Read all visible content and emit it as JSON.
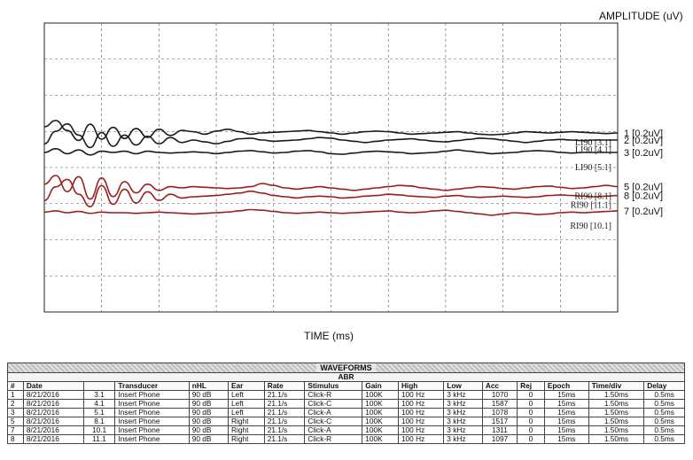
{
  "chart_data": {
    "type": "line",
    "y_axis_label": "AMPLITUDE (uV)",
    "x_axis_label": "TIME (ms)",
    "grid": true,
    "grid_style": "dashed",
    "series": [
      {
        "id": "1",
        "label": "1 [0.2uV]",
        "marker": "LI90 [3.1]",
        "color": "#1a1a1a",
        "baseline": 0.0,
        "y": [
          0.5,
          1.0,
          0.2,
          -0.6,
          0.7,
          -0.5,
          0.45,
          -0.45,
          0.35,
          -0.35,
          0.3,
          -0.2,
          0.2,
          0.1,
          -0.1,
          0.15,
          0.3,
          0.1,
          -0.1,
          0.0,
          0.05,
          0.1,
          0.15,
          0.2,
          0.1,
          0.0,
          -0.1,
          0.0,
          0.1,
          0.15,
          0.1,
          0.0,
          -0.1,
          -0.05,
          0.0,
          0.05,
          0.1,
          0.0,
          -0.1,
          -0.15,
          -0.1,
          0.0,
          0.1,
          0.05,
          0.0,
          0.05,
          0.1,
          0.05,
          0.0,
          -0.05,
          0.0
        ]
      },
      {
        "id": "2",
        "label": "2 [0.2uV]",
        "marker": "LI90 [4.1]",
        "color": "#1a1a1a",
        "baseline": -0.2,
        "y": [
          -0.3,
          0.7,
          1.3,
          0.4,
          -0.6,
          0.6,
          -0.5,
          0.4,
          -0.4,
          0.3,
          -0.3,
          0.2,
          -0.2,
          0.0,
          -0.15,
          -0.3,
          -0.1,
          0.1,
          0.15,
          0.0,
          -0.1,
          -0.05,
          0.0,
          0.1,
          0.2,
          0.15,
          0.0,
          -0.1,
          -0.2,
          -0.1,
          0.0,
          0.05,
          0.1,
          0.0,
          -0.1,
          -0.15,
          -0.05,
          0.05,
          0.15,
          0.1,
          0.0,
          -0.1,
          -0.2,
          -0.1,
          0.0,
          0.05,
          0.0,
          -0.05,
          0.0,
          0.0,
          0.0
        ]
      },
      {
        "id": "3",
        "label": "3 [0.2uV]",
        "marker": "LI90 [5.1]",
        "color": "#1a1a1a",
        "baseline": -0.55,
        "y": [
          0.0,
          0.3,
          -0.1,
          0.2,
          -0.2,
          0.1,
          0.0,
          0.1,
          -0.1,
          0.1,
          0.0,
          -0.05,
          0.0,
          0.05,
          0.0,
          -0.1,
          0.0,
          0.1,
          0.15,
          0.05,
          -0.05,
          0.0,
          0.1,
          0.15,
          0.05,
          -0.1,
          -0.15,
          -0.05,
          0.05,
          0.1,
          0.05,
          0.0,
          -0.1,
          -0.05,
          0.0,
          0.1,
          0.2,
          0.1,
          0.0,
          -0.1,
          -0.05,
          0.0,
          0.1,
          0.15,
          0.1,
          0.0,
          -0.05,
          0.0,
          0.0,
          0.0,
          0.0
        ]
      },
      {
        "id": "5",
        "label": "5 [0.2uV]",
        "marker": "RI90 [8.1]",
        "color": "#9a1f1f",
        "baseline": -1.55,
        "y": [
          0.3,
          1.0,
          -0.3,
          0.9,
          -0.9,
          0.8,
          -0.7,
          0.5,
          -0.4,
          0.3,
          -0.2,
          0.1,
          0.0,
          0.1,
          0.05,
          0.0,
          -0.05,
          0.0,
          0.1,
          0.35,
          0.2,
          0.0,
          -0.1,
          0.0,
          0.1,
          0.0,
          -0.1,
          -0.2,
          -0.1,
          0.0,
          0.1,
          0.2,
          0.15,
          0.0,
          -0.1,
          -0.2,
          -0.1,
          0.0,
          0.1,
          0.05,
          -0.05,
          -0.1,
          0.0,
          0.1,
          0.15,
          0.05,
          -0.05,
          0.0,
          0.1,
          0.2,
          0.1
        ]
      },
      {
        "id": "8",
        "label": "8 [0.2uV]",
        "marker": "RI90 [11.1]",
        "color": "#9a1f1f",
        "baseline": -1.8,
        "y": [
          -0.3,
          0.8,
          1.4,
          0.2,
          -0.8,
          0.9,
          -0.6,
          0.6,
          -0.5,
          0.4,
          -0.3,
          0.2,
          -0.1,
          0.0,
          0.05,
          0.1,
          0.2,
          0.3,
          0.45,
          0.3,
          0.1,
          0.0,
          -0.1,
          0.0,
          0.05,
          0.0,
          -0.1,
          -0.05,
          0.05,
          0.1,
          0.2,
          0.15,
          0.05,
          0.0,
          -0.05,
          0.05,
          0.1,
          0.0,
          -0.05,
          0.0,
          0.05,
          0.0,
          -0.05,
          0.0,
          0.1,
          0.15,
          0.1,
          0.05,
          0.0,
          0.05,
          0.1
        ]
      },
      {
        "id": "7",
        "label": "7 [0.2uV]",
        "marker": "RI90 [10.1]",
        "color": "#9a1f1f",
        "baseline": -2.25,
        "y": [
          0.05,
          0.15,
          0.0,
          0.1,
          -0.05,
          0.05,
          0.0,
          0.0,
          -0.05,
          0.0,
          0.05,
          0.0,
          -0.05,
          -0.1,
          -0.05,
          0.0,
          0.05,
          0.15,
          0.25,
          0.2,
          0.1,
          0.0,
          -0.05,
          0.0,
          0.05,
          0.0,
          -0.05,
          0.0,
          0.05,
          0.1,
          0.15,
          0.05,
          0.0,
          0.05,
          0.15,
          0.2,
          0.1,
          0.0,
          -0.1,
          -0.2,
          -0.1,
          0.0,
          -0.05,
          -0.15,
          -0.1,
          0.0,
          0.05,
          0.0,
          0.05,
          0.1,
          0.15
        ]
      }
    ]
  },
  "table": {
    "title": "WAVEFORMS",
    "subtitle": "ABR",
    "columns": [
      "#",
      "Date",
      "",
      "Transducer",
      "nHL",
      "Ear",
      "Rate",
      "Stimulus",
      "Gain",
      "High",
      "Low",
      "Acc",
      "Rej",
      "Epoch",
      "Time/div",
      "Delay"
    ],
    "rows": [
      [
        "1",
        "8/21/2016",
        "3.1",
        "Insert Phone",
        "90 dB",
        "Left",
        "21.1/s",
        "Click-R",
        "100K",
        "100 Hz",
        "3 kHz",
        "1070",
        "0",
        "15ms",
        "1.50ms",
        "0.5ms"
      ],
      [
        "2",
        "8/21/2016",
        "4.1",
        "Insert Phone",
        "90 dB",
        "Left",
        "21.1/s",
        "Click-C",
        "100K",
        "100 Hz",
        "3 kHz",
        "1587",
        "0",
        "15ms",
        "1.50ms",
        "0.5ms"
      ],
      [
        "3",
        "8/21/2016",
        "5.1",
        "Insert Phone",
        "90 dB",
        "Left",
        "21.1/s",
        "Click-A",
        "100K",
        "100 Hz",
        "3 kHz",
        "1078",
        "0",
        "15ms",
        "1.50ms",
        "0.5ms"
      ],
      [
        "5",
        "8/21/2016",
        "8.1",
        "Insert Phone",
        "90 dB",
        "Right",
        "21.1/s",
        "Click-C",
        "100K",
        "100 Hz",
        "3 kHz",
        "1517",
        "0",
        "15ms",
        "1.50ms",
        "0.5ms"
      ],
      [
        "7",
        "8/21/2016",
        "10.1",
        "Insert Phone",
        "90 dB",
        "Right",
        "21.1/s",
        "Click-A",
        "100K",
        "100 Hz",
        "3 kHz",
        "1311",
        "0",
        "15ms",
        "1.50ms",
        "0.5ms"
      ],
      [
        "8",
        "8/21/2016",
        "11.1",
        "Insert Phone",
        "90 dB",
        "Right",
        "21.1/s",
        "Click-R",
        "100K",
        "100 Hz",
        "3 kHz",
        "1097",
        "0",
        "15ms",
        "1.50ms",
        "0.5ms"
      ]
    ]
  }
}
